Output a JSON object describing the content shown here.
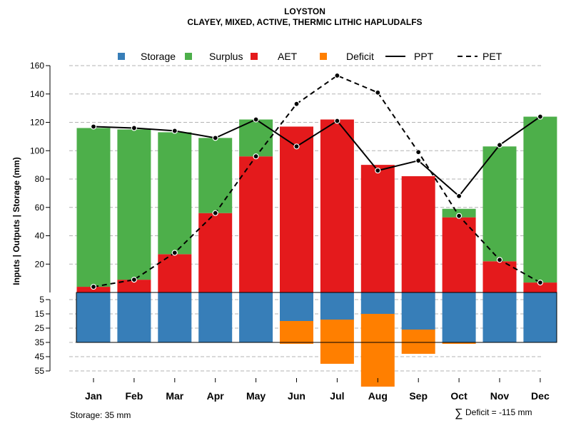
{
  "chart_data": {
    "type": "bar",
    "title": "LOYSTON",
    "subtitle": "CLAYEY, MIXED, ACTIVE, THERMIC LITHIC HAPLUDALFS",
    "ylabel": "Inputs | Outputs | Storage    (mm)",
    "categories": [
      "Jan",
      "Feb",
      "Mar",
      "Apr",
      "May",
      "Jun",
      "Jul",
      "Aug",
      "Sep",
      "Oct",
      "Nov",
      "Dec"
    ],
    "ylim_upper": [
      0,
      160
    ],
    "upper_ticks": [
      20,
      40,
      60,
      80,
      100,
      120,
      140,
      160
    ],
    "lower_ticks": [
      5,
      15,
      25,
      35,
      45,
      55
    ],
    "storage_capacity": 35,
    "series": [
      {
        "name": "Storage",
        "color": "#377EB8",
        "values": [
          35,
          35,
          35,
          35,
          35,
          20,
          19,
          15,
          26,
          35,
          35,
          35
        ]
      },
      {
        "name": "Surplus",
        "color": "#4DAF4A",
        "values": [
          112,
          106,
          86,
          53,
          26,
          0,
          0,
          0,
          0,
          6,
          81,
          117
        ]
      },
      {
        "name": "AET",
        "color": "#E41A1C",
        "values": [
          4,
          9,
          27,
          56,
          96,
          117,
          122,
          90,
          82,
          53,
          22,
          7
        ]
      },
      {
        "name": "Deficit",
        "color": "#FF7F00",
        "values": [
          0,
          0,
          0,
          0,
          0,
          16,
          31,
          51,
          17,
          1,
          0,
          0
        ]
      },
      {
        "name": "PPT",
        "line": "solid",
        "values": [
          117,
          116,
          114,
          109,
          122,
          103,
          121,
          86,
          93,
          68,
          104,
          124
        ]
      },
      {
        "name": "PET",
        "line": "dashed",
        "values": [
          4,
          9,
          28,
          56,
          96,
          133,
          153,
          141,
          99,
          54,
          23,
          7
        ]
      }
    ],
    "legend": [
      "Storage",
      "Surplus",
      "AET",
      "Deficit",
      "PPT",
      "PET"
    ],
    "legend_position": "top"
  },
  "footer": {
    "storage_note": "Storage: 35 mm",
    "deficit_symbol": "∑",
    "deficit_note": "Deficit = -115 mm"
  }
}
